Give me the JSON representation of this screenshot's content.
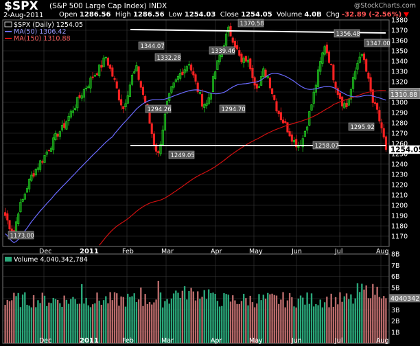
{
  "header": {
    "symbol": "$SPX",
    "description": "(S&P 500 Large Cap Index)",
    "exchange": "INDX",
    "credit": "@StockCharts.com",
    "date": "2-Aug-2011",
    "open_label": "Open",
    "open": "1286.56",
    "high_label": "High",
    "high": "1286.56",
    "low_label": "Low",
    "low": "1254.03",
    "close_label": "Close",
    "close": "1254.05",
    "volume_label": "Volume",
    "volume": "4.0B",
    "chg_label": "Chg",
    "chg": "-32.89 (-2.56%)",
    "down_arrow_color": "#ff0000"
  },
  "legend": {
    "price": "$SPX (Daily) 1254.05",
    "ma50": "MA(50) 1306.42",
    "ma150": "MA(150) 1310.88",
    "volume": "Volume 4,040,342,784"
  },
  "colors": {
    "up": "#22dd22",
    "down": "#ff2222",
    "ma50": "#6a6aff",
    "ma150": "#d01010",
    "vol_up": "#2aa77a",
    "vol_down": "#b86a6a",
    "grid": "#3a3a3a",
    "trendline": "#ffffff"
  },
  "chart_data": [
    {
      "type": "candlestick",
      "title": "$SPX (Daily) 1254.05",
      "ylim": [
        1160,
        1380
      ],
      "y_ticks": [
        1170,
        1180,
        1190,
        1200,
        1210,
        1220,
        1230,
        1240,
        1250,
        1260,
        1270,
        1280,
        1290,
        1300,
        1310,
        1320,
        1330,
        1340,
        1350,
        1360,
        1370,
        1380
      ],
      "x_tick_labels": [
        "Dec",
        "2011",
        "Feb",
        "Mar",
        "Apr",
        "May",
        "Jun",
        "Jul",
        "Aug"
      ],
      "price_tags": [
        {
          "label": "1306.42",
          "value": 1306.42,
          "series": "MA(50)"
        },
        {
          "label": "1310.88",
          "value": 1310.88,
          "series": "MA(150)"
        },
        {
          "label": "1254.05",
          "value": 1254.05,
          "series": "close"
        }
      ],
      "annotations": [
        {
          "label": "1173.00",
          "value": 1173.0
        },
        {
          "label": "1344.07",
          "value": 1344.07
        },
        {
          "label": "1332.28",
          "value": 1332.28
        },
        {
          "label": "1294.26",
          "value": 1294.26
        },
        {
          "label": "1249.05",
          "value": 1249.05
        },
        {
          "label": "1339.46",
          "value": 1339.46
        },
        {
          "label": "1294.70",
          "value": 1294.7
        },
        {
          "label": "1370.58",
          "value": 1370.58
        },
        {
          "label": "1258.07",
          "value": 1258.07
        },
        {
          "label": "1356.48",
          "value": 1356.48
        },
        {
          "label": "1347.00",
          "value": 1347.0
        },
        {
          "label": "1295.92",
          "value": 1295.92
        }
      ],
      "close_path": [
        1190,
        1180,
        1173,
        1195,
        1205,
        1218,
        1228,
        1235,
        1242,
        1248,
        1256,
        1262,
        1270,
        1274,
        1282,
        1290,
        1297,
        1305,
        1312,
        1318,
        1325,
        1330,
        1336,
        1344,
        1332,
        1320,
        1305,
        1294,
        1310,
        1325,
        1332,
        1315,
        1300,
        1280,
        1260,
        1249,
        1275,
        1298,
        1312,
        1320,
        1328,
        1333,
        1339,
        1325,
        1312,
        1300,
        1298,
        1312,
        1330,
        1345,
        1358,
        1370,
        1362,
        1350,
        1338,
        1342,
        1335,
        1320,
        1315,
        1330,
        1325,
        1310,
        1295,
        1285,
        1278,
        1270,
        1262,
        1258,
        1265,
        1280,
        1298,
        1318,
        1338,
        1356,
        1342,
        1325,
        1310,
        1300,
        1296,
        1312,
        1330,
        1347,
        1340,
        1320,
        1300,
        1290,
        1275,
        1254
      ],
      "volume": {
        "label": "Volume 4,040,342,784",
        "ylim": [
          0,
          8
        ],
        "y_ticks": [
          1,
          2,
          3,
          4,
          5,
          6,
          7,
          8
        ],
        "y_tick_labels": [
          "1B",
          "2B",
          "3B",
          "4B",
          "5B",
          "6B",
          "7B",
          "8B"
        ],
        "last_tag": "4040342",
        "last_value_billions": 4.04
      }
    }
  ]
}
